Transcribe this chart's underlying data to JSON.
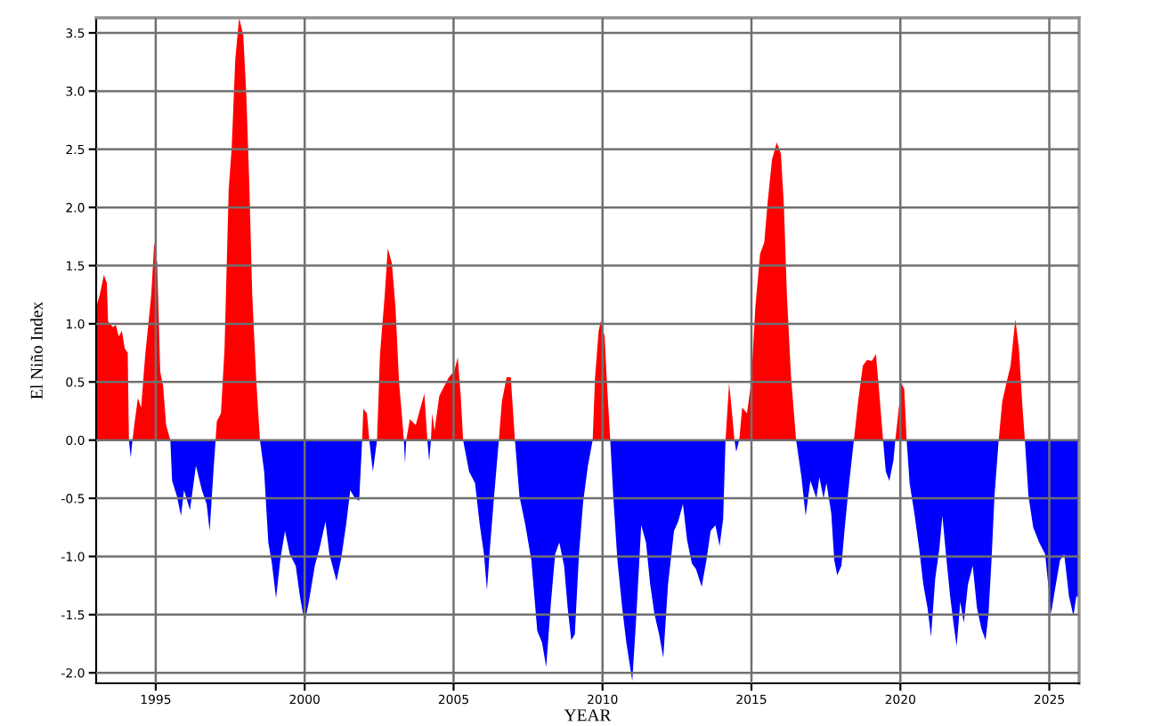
{
  "chart_data": {
    "type": "area",
    "xlabel": "YEAR",
    "ylabel": "El Niño Index",
    "series": [
      {
        "color": "#ff0000",
        "x": [
          1993.0,
          1993.12,
          1993.26,
          1993.36,
          1993.4,
          1993.56,
          1993.66,
          1993.76,
          1993.86,
          1993.96,
          1994.06,
          1994.1,
          1994.22,
          1994.28,
          1994.4,
          1994.51,
          1994.65,
          1994.75,
          1994.85,
          1994.95,
          1995.05,
          1995.15,
          1995.25,
          1995.35,
          1995.49,
          1997.01,
          1997.05,
          1997.19,
          1997.31,
          1997.45,
          1997.55,
          1997.67,
          1997.8,
          1997.94,
          1998.04,
          1998.14,
          1998.24,
          1998.38,
          1998.5,
          2001.93,
          2001.97,
          2002.09,
          2002.17,
          2002.43,
          2002.53,
          2002.69,
          2002.79,
          2002.93,
          2003.05,
          2003.17,
          2003.27,
          2003.33,
          2003.41,
          2003.53,
          2003.73,
          2003.89,
          2004.02,
          2004.12,
          2004.24,
          2004.28,
          2004.36,
          2004.52,
          2004.68,
          2004.84,
          2005.02,
          2005.14,
          2005.24,
          2005.32,
          2006.52,
          2006.62,
          2006.78,
          2006.92,
          2007.06,
          2009.67,
          2009.75,
          2009.87,
          2009.95,
          2010.07,
          2010.16,
          2010.26,
          2014.13,
          2014.25,
          2014.35,
          2014.43,
          2014.59,
          2014.69,
          2014.85,
          2014.99,
          2015.13,
          2015.29,
          2015.43,
          2015.55,
          2015.69,
          2015.85,
          2015.99,
          2016.09,
          2016.19,
          2016.33,
          2016.5,
          2018.44,
          2018.58,
          2018.74,
          2018.88,
          2019.04,
          2019.18,
          2019.28,
          2019.42,
          2019.83,
          2019.93,
          2020.03,
          2020.13,
          2020.21,
          2023.3,
          2023.42,
          2023.56,
          2023.7,
          2023.86,
          2023.98,
          2024.1,
          2024.18
        ],
        "values": [
          1.14,
          1.25,
          1.42,
          1.35,
          1.02,
          0.97,
          0.99,
          0.89,
          0.94,
          0.79,
          0.75,
          0,
          0,
          0.13,
          0.36,
          0.28,
          0.74,
          0.99,
          1.25,
          1.7,
          1.52,
          0.59,
          0.46,
          0.13,
          0,
          0,
          0.16,
          0.23,
          0.79,
          2.16,
          2.51,
          3.27,
          3.63,
          3.48,
          2.97,
          2.21,
          1.25,
          0.49,
          0,
          0,
          0.27,
          0.23,
          0,
          0,
          0.74,
          1.25,
          1.65,
          1.52,
          1.14,
          0.49,
          0.2,
          0,
          0,
          0.18,
          0.13,
          0.28,
          0.4,
          0,
          0,
          0.23,
          0.08,
          0.38,
          0.46,
          0.54,
          0.59,
          0.71,
          0.38,
          0,
          0,
          0.33,
          0.54,
          0.54,
          0,
          0,
          0.54,
          0.94,
          1.03,
          0.89,
          0.44,
          0,
          0,
          0.49,
          0.23,
          0,
          0,
          0.28,
          0.23,
          0.49,
          1.14,
          1.6,
          1.7,
          2.06,
          2.41,
          2.56,
          2.46,
          2.01,
          1.25,
          0.54,
          0,
          0,
          0.33,
          0.64,
          0.69,
          0.68,
          0.74,
          0.44,
          0,
          0,
          0.23,
          0.49,
          0.44,
          0,
          0,
          0.33,
          0.49,
          0.64,
          1.04,
          0.79,
          0.28,
          0
        ]
      },
      {
        "color": "#0000ff",
        "x": [
          1994.1,
          1994.16,
          1994.22,
          1995.49,
          1995.55,
          1995.71,
          1995.85,
          1995.95,
          1996.15,
          1996.35,
          1996.55,
          1996.71,
          1996.81,
          1996.95,
          1997.01,
          1998.5,
          1998.64,
          1998.78,
          1998.9,
          1999.04,
          1999.18,
          1999.34,
          1999.5,
          1999.7,
          1999.84,
          2000.0,
          2000.14,
          2000.34,
          2000.5,
          2000.7,
          2000.83,
          2001.07,
          2001.23,
          2001.39,
          2001.53,
          2001.69,
          2001.83,
          2001.93,
          2002.17,
          2002.29,
          2002.43,
          2003.33,
          2003.37,
          2003.41,
          2004.12,
          2004.18,
          2004.24,
          2005.32,
          2005.52,
          2005.72,
          2005.88,
          2006.02,
          2006.12,
          2006.22,
          2006.36,
          2006.52,
          2007.06,
          2007.21,
          2007.41,
          2007.61,
          2007.81,
          2007.97,
          2008.11,
          2008.27,
          2008.41,
          2008.55,
          2008.71,
          2008.83,
          2008.95,
          2009.07,
          2009.21,
          2009.35,
          2009.51,
          2009.67,
          2010.26,
          2010.36,
          2010.5,
          2010.66,
          2010.8,
          2011.0,
          2011.14,
          2011.3,
          2011.46,
          2011.6,
          2011.74,
          2011.9,
          2012.04,
          2012.2,
          2012.4,
          2012.54,
          2012.7,
          2012.84,
          2013.0,
          2013.14,
          2013.33,
          2013.49,
          2013.63,
          2013.79,
          2013.93,
          2014.05,
          2014.13,
          2014.43,
          2014.49,
          2014.59,
          2016.5,
          2016.68,
          2016.82,
          2016.98,
          2017.18,
          2017.28,
          2017.42,
          2017.52,
          2017.68,
          2017.78,
          2017.88,
          2018.02,
          2018.14,
          2018.28,
          2018.44,
          2019.42,
          2019.51,
          2019.63,
          2019.77,
          2019.83,
          2020.21,
          2020.31,
          2020.47,
          2020.63,
          2020.77,
          2020.91,
          2021.03,
          2021.17,
          2021.31,
          2021.41,
          2021.53,
          2021.67,
          2021.79,
          2021.89,
          2022.01,
          2022.13,
          2022.27,
          2022.43,
          2022.57,
          2022.72,
          2022.86,
          2022.96,
          2023.06,
          2023.16,
          2023.3,
          2024.18,
          2024.3,
          2024.46,
          2024.66,
          2024.86,
          2025.06,
          2025.22,
          2025.36,
          2025.5,
          2025.66,
          2025.81,
          2025.91,
          2026.0
        ],
        "values": [
          0,
          -0.15,
          0,
          0,
          -0.35,
          -0.48,
          -0.65,
          -0.43,
          -0.6,
          -0.22,
          -0.43,
          -0.55,
          -0.78,
          -0.22,
          0,
          0,
          -0.27,
          -0.88,
          -1.06,
          -1.36,
          -1.03,
          -0.78,
          -0.98,
          -1.08,
          -1.34,
          -1.57,
          -1.39,
          -1.08,
          -0.93,
          -0.7,
          -0.98,
          -1.21,
          -1.01,
          -0.73,
          -0.43,
          -0.5,
          -0.52,
          0,
          0,
          -0.27,
          0,
          0,
          -0.2,
          0,
          0,
          -0.18,
          0,
          0,
          -0.27,
          -0.37,
          -0.73,
          -0.98,
          -1.29,
          -0.93,
          -0.48,
          0,
          0,
          -0.48,
          -0.73,
          -1.03,
          -1.64,
          -1.74,
          -1.95,
          -1.39,
          -0.98,
          -0.88,
          -1.08,
          -1.44,
          -1.72,
          -1.67,
          -0.98,
          -0.53,
          -0.22,
          0,
          0,
          -0.48,
          -1.03,
          -1.44,
          -1.74,
          -2.07,
          -1.49,
          -0.73,
          -0.88,
          -1.24,
          -1.49,
          -1.67,
          -1.87,
          -1.24,
          -0.78,
          -0.7,
          -0.55,
          -0.86,
          -1.06,
          -1.11,
          -1.26,
          -1.03,
          -0.78,
          -0.73,
          -0.91,
          -0.68,
          0,
          0,
          -0.1,
          0,
          0,
          -0.32,
          -0.65,
          -0.35,
          -0.5,
          -0.32,
          -0.5,
          -0.37,
          -0.63,
          -1.03,
          -1.16,
          -1.08,
          -0.73,
          -0.37,
          0,
          0,
          -0.27,
          -0.35,
          -0.17,
          0,
          0,
          -0.37,
          -0.63,
          -0.93,
          -1.24,
          -1.44,
          -1.69,
          -1.19,
          -0.93,
          -0.65,
          -0.98,
          -1.34,
          -1.59,
          -1.77,
          -1.39,
          -1.57,
          -1.24,
          -1.08,
          -1.44,
          -1.62,
          -1.72,
          -1.49,
          -1.03,
          -0.48,
          0,
          0,
          -0.48,
          -0.75,
          -0.88,
          -0.98,
          -1.49,
          -1.24,
          -1.03,
          -0.98,
          -1.34,
          -1.51,
          -1.34,
          -1.36
        ]
      }
    ],
    "xlim": [
      1993.0,
      2026.0
    ],
    "ylim": [
      -2.09,
      3.63
    ],
    "xticks": [
      1995,
      2000,
      2005,
      2010,
      2015,
      2020,
      2025
    ],
    "yticks": [
      {
        "value": -2,
        "label": "-2.0"
      },
      -1.5,
      {
        "value": -1,
        "label": "-1.0"
      },
      -0.5,
      {
        "value": 0,
        "label": "0.0"
      },
      0.5,
      {
        "value": 1,
        "label": "1.0"
      },
      1.5,
      {
        "value": 2,
        "label": "2.0"
      },
      2.5,
      {
        "value": 3,
        "label": "3.0"
      },
      3.5
    ],
    "grid": true
  }
}
